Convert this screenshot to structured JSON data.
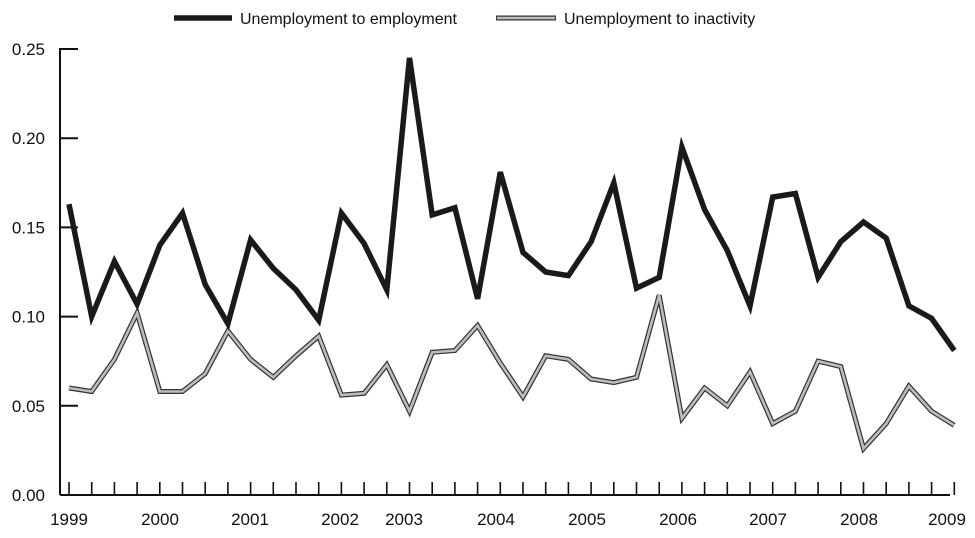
{
  "chart_data": {
    "type": "line",
    "title": "",
    "xlabel": "",
    "ylabel": "",
    "ylim": [
      0,
      0.25
    ],
    "yticks": [
      "0.00",
      "0.05",
      "0.10",
      "0.15",
      "0.20",
      "0.25"
    ],
    "year_labels": [
      "1999",
      "2000",
      "2001",
      "2002",
      "2003",
      "2004",
      "2005",
      "2006",
      "2007",
      "2008",
      "2009"
    ],
    "grid": false,
    "legend_position": "top",
    "series": [
      {
        "name": "Unemployment to employment",
        "color": "#1a1a1a",
        "style": "thick-solid",
        "values": [
          0.163,
          0.1,
          0.131,
          0.107,
          0.14,
          0.158,
          0.118,
          0.096,
          0.143,
          0.127,
          0.115,
          0.098,
          0.158,
          0.141,
          0.115,
          0.245,
          0.157,
          0.161,
          0.11,
          0.181,
          0.136,
          0.125,
          0.123,
          0.142,
          0.175,
          0.116,
          0.122,
          0.195,
          0.16,
          0.137,
          0.106,
          0.167,
          0.169,
          0.122,
          0.142,
          0.153,
          0.144,
          0.106,
          0.099,
          0.081
        ]
      },
      {
        "name": "Unemployment to inactivity",
        "color": "#bdbdbd",
        "style": "outlined",
        "values": [
          0.06,
          0.058,
          0.076,
          0.102,
          0.058,
          0.058,
          0.068,
          0.092,
          0.076,
          0.066,
          0.078,
          0.089,
          0.056,
          0.057,
          0.073,
          0.047,
          0.08,
          0.081,
          0.095,
          0.074,
          0.055,
          0.078,
          0.076,
          0.065,
          0.063,
          0.066,
          0.112,
          0.043,
          0.06,
          0.05,
          0.069,
          0.04,
          0.047,
          0.075,
          0.072,
          0.026,
          0.04,
          0.061,
          0.047,
          0.039
        ]
      }
    ]
  }
}
